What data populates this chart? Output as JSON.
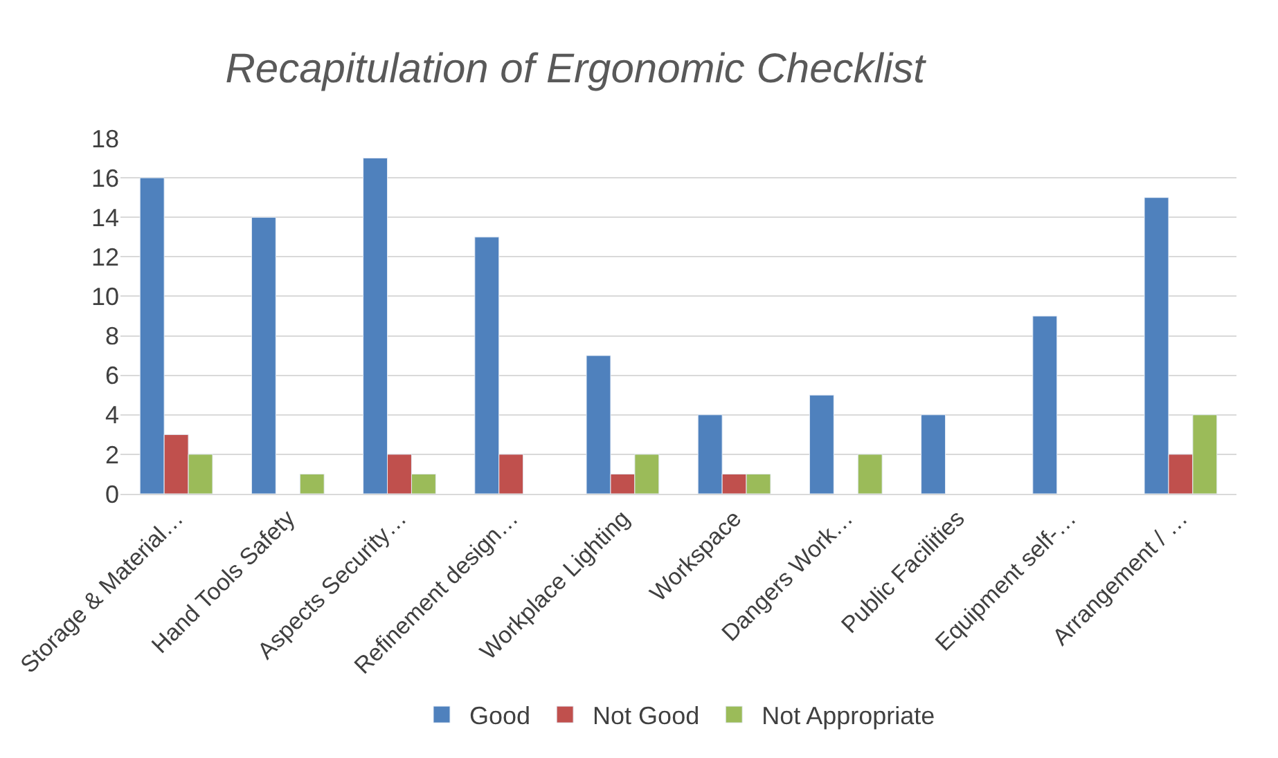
{
  "chart_data": {
    "type": "bar",
    "title": "Recapitulation of Ergonomic Checklist",
    "categories": [
      "Storage & Material…",
      "Hand Tools Safety",
      "Aspects Security…",
      "Refinement design…",
      "Workplace Lighting",
      "Workspace",
      "Dangers Work…",
      "Public Facilities",
      "Equipment self-…",
      "Arrangement / …"
    ],
    "series": [
      {
        "name": "Good",
        "color": "#4f81bd",
        "values": [
          16,
          14,
          17,
          13,
          7,
          4,
          5,
          4,
          9,
          15
        ]
      },
      {
        "name": "Not Good",
        "color": "#c0504d",
        "values": [
          3,
          null,
          2,
          2,
          1,
          1,
          null,
          null,
          null,
          2
        ]
      },
      {
        "name": "Not Appropriate",
        "color": "#9bbb59",
        "values": [
          2,
          1,
          1,
          null,
          2,
          1,
          2,
          null,
          null,
          4
        ]
      }
    ],
    "ylim": [
      0,
      18
    ],
    "yticks": [
      0,
      2,
      4,
      6,
      8,
      10,
      12,
      14,
      16,
      18
    ],
    "grid": "y",
    "legend": "bottom"
  }
}
